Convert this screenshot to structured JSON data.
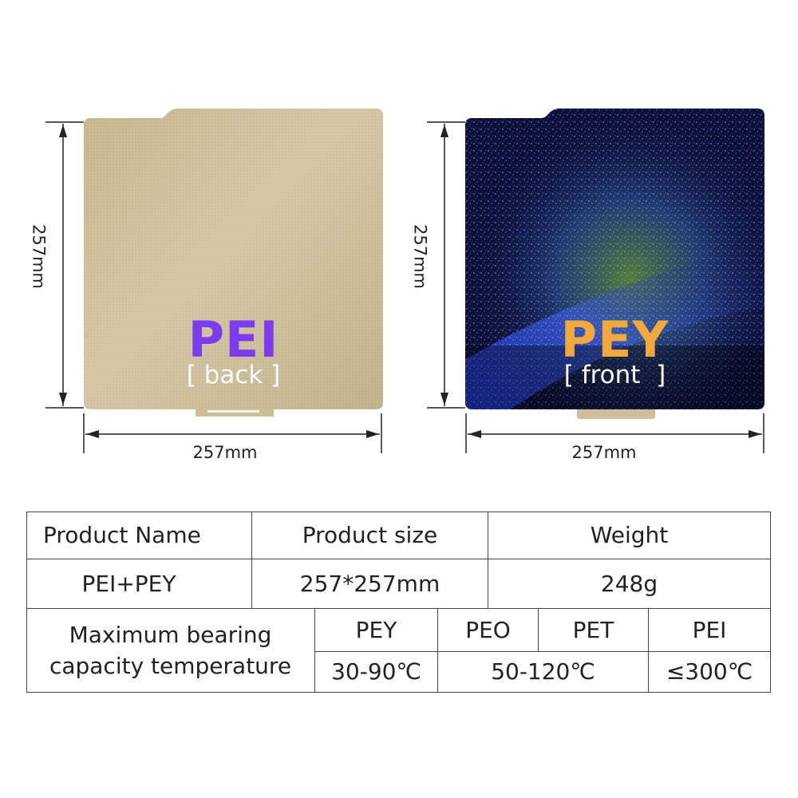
{
  "sheets": {
    "back": {
      "title": "PEI",
      "subtitle": "[ back ]",
      "title_color": "#7b3cf0",
      "surface_color": "#cbbb95",
      "height_label": "257mm",
      "width_label": "257mm"
    },
    "front": {
      "title": "PEY",
      "subtitle": "[ front  ]",
      "title_color": "#f2a83a",
      "surface_color": "#0a0f3e",
      "height_label": "257mm",
      "width_label": "257mm"
    }
  },
  "table": {
    "headers": {
      "product_name": "Product Name",
      "product_size": "Product size",
      "weight": "Weight"
    },
    "row": {
      "product_name": "PEI+PEY",
      "product_size": "257*257mm",
      "weight": "248g"
    },
    "temperature": {
      "label_line1": "Maximum bearing",
      "label_line2": "capacity temperature",
      "materials": [
        "PEY",
        "PEO",
        "PET",
        "PEI"
      ],
      "values": {
        "pey": "30-90℃",
        "peo_pet": "50-120℃",
        "pei": "≤300℃"
      }
    }
  }
}
